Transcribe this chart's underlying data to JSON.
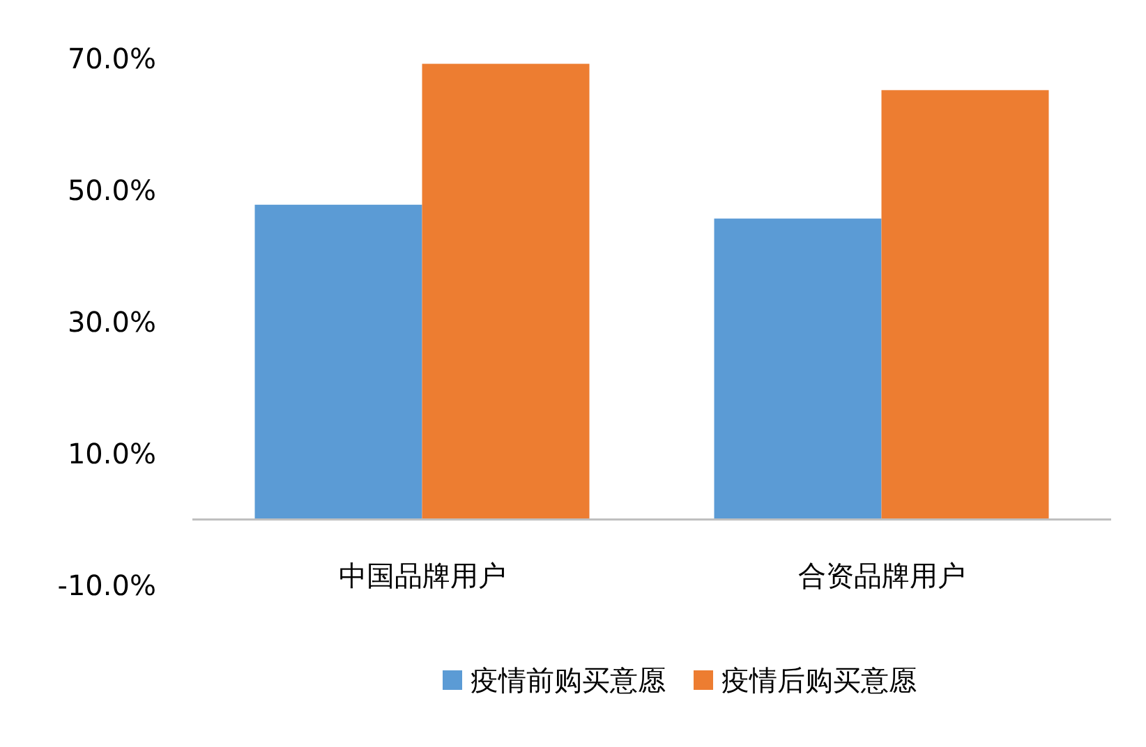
{
  "chart_data": {
    "type": "bar",
    "categories": [
      "中国品牌用户",
      "合资品牌用户"
    ],
    "series": [
      {
        "name": "疫情前购买意愿",
        "color": "#5b9bd5",
        "values": [
          47.8,
          45.7
        ]
      },
      {
        "name": "疫情后购买意愿",
        "color": "#ed7d31",
        "values": [
          69.2,
          65.2
        ]
      }
    ],
    "ylim": [
      -10,
      70
    ],
    "yticks": [
      {
        "value": -10,
        "label": "-10.0%"
      },
      {
        "value": 10,
        "label": "10.0%"
      },
      {
        "value": 30,
        "label": "30.0%"
      },
      {
        "value": 50,
        "label": "50.0%"
      },
      {
        "value": 70,
        "label": "70.0%"
      }
    ],
    "grid": false,
    "legend": "bottom"
  }
}
